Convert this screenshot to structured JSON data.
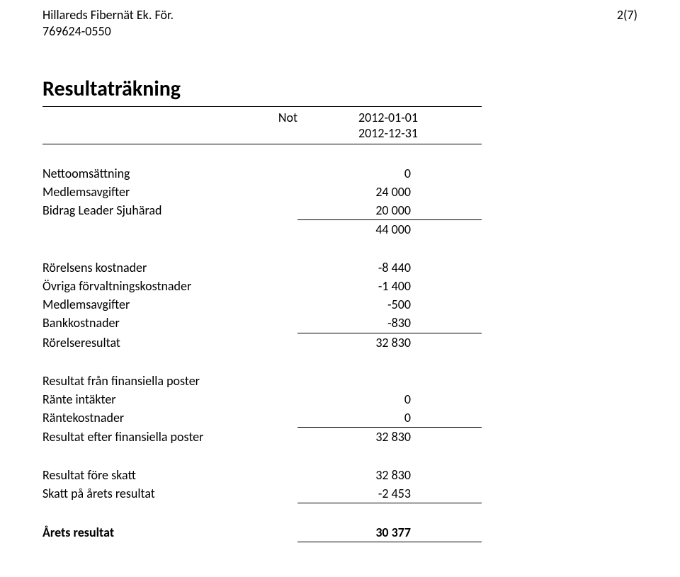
{
  "header": {
    "company_name": "Hillareds Fibernät Ek. För.",
    "org_number": "769624-0550",
    "page_ref": "2(7)"
  },
  "title": "Resultaträkning",
  "columns": {
    "not_label": "Not",
    "period_start": "2012-01-01",
    "period_end": "2012-12-31"
  },
  "sections": {
    "revenue": {
      "netomsattning": {
        "label": "Nettoomsättning",
        "value": "0"
      },
      "medlemsavgifter": {
        "label": "Medlemsavgifter",
        "value": "24 000"
      },
      "bidrag": {
        "label": "Bidrag Leader Sjuhärad",
        "value": "20 000"
      },
      "subtotal": "44 000"
    },
    "costs": {
      "rorelsens_kostnader": {
        "label": "Rörelsens kostnader",
        "value": "-8 440"
      },
      "ovriga_forvaltning": {
        "label": "Övriga förvaltningskostnader",
        "value": "-1 400"
      },
      "medlemsavgifter": {
        "label": "Medlemsavgifter",
        "value": "-500"
      },
      "bankkostnader": {
        "label": "Bankkostnader",
        "value": "-830"
      },
      "rorelseresultat": {
        "label": "Rörelseresultat",
        "value": "32 830"
      }
    },
    "financial": {
      "heading": "Resultat från finansiella poster",
      "ranteintakter": {
        "label": "Ränte intäkter",
        "value": "0"
      },
      "rantekostnader": {
        "label": "Räntekostnader",
        "value": "0"
      },
      "resultat_efter": {
        "label": "Resultat efter finansiella poster",
        "value": "32 830"
      }
    },
    "tax": {
      "resultat_fore_skatt": {
        "label": "Resultat före skatt",
        "value": "32 830"
      },
      "skatt": {
        "label": "Skatt på årets resultat",
        "value": "-2 453"
      }
    },
    "final": {
      "arets_resultat": {
        "label": "Årets resultat",
        "value": "30 377"
      }
    }
  }
}
